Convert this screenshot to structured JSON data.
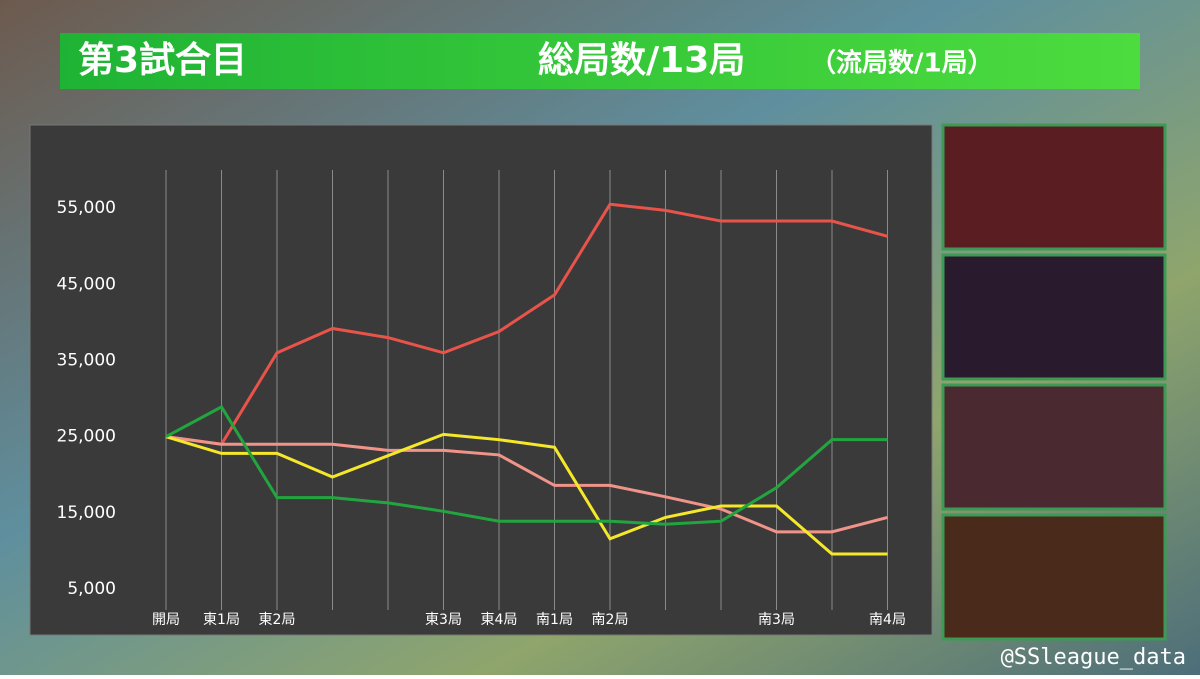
{
  "header": {
    "game": "第3試合目",
    "total": "総局数/13局",
    "draws": "（流局数/1局）"
  },
  "chart_data": {
    "type": "line",
    "categories": [
      "開局",
      "東1局",
      "東2局",
      null,
      null,
      "東3局",
      "東4局",
      "南1局",
      "南2局",
      null,
      null,
      "南3局",
      null,
      "南4局"
    ],
    "series": [
      {
        "color": "#e8534a",
        "values": [
          25000,
          24000,
          36000,
          39200,
          38000,
          36000,
          38800,
          43600,
          55500,
          54700,
          53300,
          53300,
          53300,
          51300
        ]
      },
      {
        "color": "#f0948a",
        "values": [
          25000,
          24000,
          24000,
          24000,
          23200,
          23200,
          22600,
          18600,
          18600,
          17100,
          15500,
          12500,
          12500,
          14400
        ]
      },
      {
        "color": "#f5e82a",
        "values": [
          25000,
          22800,
          22800,
          19700,
          22500,
          25300,
          24600,
          23600,
          11600,
          14400,
          15900,
          15900,
          9600,
          9600
        ]
      },
      {
        "color": "#22a53f",
        "values": [
          25000,
          28900,
          17000,
          17000,
          16300,
          15200,
          13900,
          13900,
          13900,
          13500,
          13900,
          18300,
          24600,
          24600
        ]
      }
    ],
    "ylim": [
      5000,
      60000
    ],
    "yticks": [
      {
        "value": 5000,
        "label": "5,000"
      },
      {
        "value": 15000,
        "label": "15,000"
      },
      {
        "value": 25000,
        "label": "25,000"
      },
      {
        "value": 35000,
        "label": "35,000"
      },
      {
        "value": 45000,
        "label": "45,000"
      },
      {
        "value": 55000,
        "label": "55,000"
      }
    ],
    "grid": true
  },
  "footer": "@SSleague_data"
}
